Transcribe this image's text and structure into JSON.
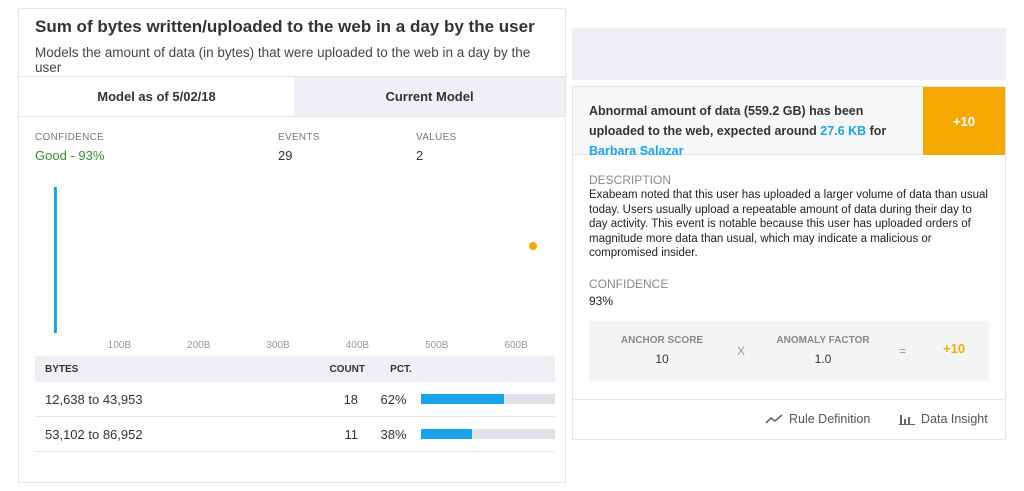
{
  "left_panel": {
    "title": "Sum of bytes written/uploaded to the web in a day by the user",
    "subtitle": "Models the amount of data (in bytes) that were uploaded to the web in a day by the user",
    "tabs": [
      {
        "label": "Model as of 5/02/18",
        "active": true
      },
      {
        "label": "Current Model",
        "active": false
      }
    ],
    "stats": {
      "confidence_label": "CONFIDENCE",
      "confidence_value": "Good - 93%",
      "events_label": "EVENTS",
      "events_value": "29",
      "values_label": "VALUES",
      "values_value": "2"
    },
    "table": {
      "headers": {
        "bytes": "BYTES",
        "count": "COUNT",
        "pct": "PCT."
      },
      "rows": [
        {
          "bytes": "12,638 to 43,953",
          "count": "18",
          "pct": "62%",
          "fraction": 0.62
        },
        {
          "bytes": "53,102 to 86,952",
          "count": "11",
          "pct": "38%",
          "fraction": 0.38
        }
      ]
    }
  },
  "chart_data": {
    "type": "bar",
    "x_tick_labels": [
      "100B",
      "200B",
      "300B",
      "400B",
      "500B",
      "600B"
    ],
    "x_ticks": [
      100,
      200,
      300,
      400,
      500,
      600
    ],
    "xlim": [
      0,
      620
    ],
    "bars": [
      {
        "x": 0.5,
        "height_fraction": 1.0
      }
    ],
    "highlight_point": {
      "x": 620,
      "height_fraction": 0.5
    },
    "colors": {
      "bar": "#1aa3e8",
      "point": "#f5a800",
      "tick_text": "#999999"
    }
  },
  "right_panel": {
    "alert": {
      "text_before": "Abnormal amount of data (559.2 GB) has been uploaded to the web, expected around ",
      "expected": "27.6 KB",
      "text_mid": " for ",
      "user": "Barbara Salazar",
      "score": "+10"
    },
    "description_label": "DESCRIPTION",
    "description": "Exabeam noted that this user has uploaded a larger volume of data than usual today. Users usually upload a repeatable amount of data during their day to day activity. This event is notable because this user has uploaded orders of magnitude more data than usual, which may indicate a malicious or compromised insider.",
    "confidence_label": "CONFIDENCE",
    "confidence_value": "93%",
    "formula": {
      "anchor_label": "ANCHOR SCORE",
      "anchor_value": "10",
      "times": "X",
      "factor_label": "ANOMALY FACTOR",
      "factor_value": "1.0",
      "equals": "=",
      "result": "+10"
    },
    "footer": {
      "rule_definition": "Rule Definition",
      "data_insight": "Data Insight"
    }
  },
  "colors": {
    "accent": "#f5a800",
    "link": "#1aa3e8",
    "good": "#3b8a3b"
  }
}
